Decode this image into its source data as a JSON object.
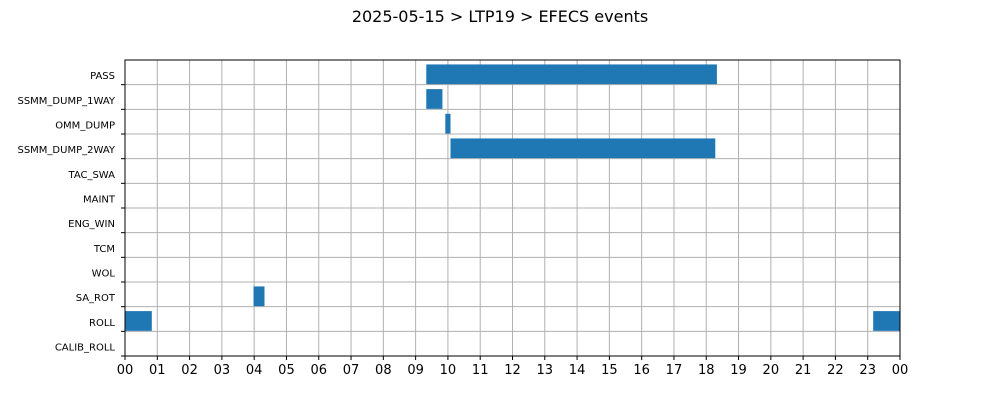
{
  "chart_data": {
    "type": "bar",
    "orientation": "horizontal-timeline",
    "title": "2025-05-15 > LTP19 > EFECS events",
    "xlabel": "",
    "ylabel": "",
    "xlim": [
      0,
      24
    ],
    "x_tick_labels": [
      "00",
      "01",
      "02",
      "03",
      "04",
      "05",
      "06",
      "07",
      "08",
      "09",
      "10",
      "11",
      "12",
      "13",
      "14",
      "15",
      "16",
      "17",
      "18",
      "19",
      "20",
      "21",
      "22",
      "23",
      "00"
    ],
    "categories": [
      "PASS",
      "SSMM_DUMP_1WAY",
      "OMM_DUMP",
      "SSMM_DUMP_2WAY",
      "TAC_SWA",
      "MAINT",
      "ENG_WIN",
      "TCM",
      "WOL",
      "SA_ROT",
      "ROLL",
      "CALIB_ROLL"
    ],
    "grid": true,
    "bar_color": "#1f77b4",
    "events": [
      {
        "category": "PASS",
        "start": 9.33,
        "end": 18.33
      },
      {
        "category": "SSMM_DUMP_1WAY",
        "start": 9.33,
        "end": 9.83
      },
      {
        "category": "OMM_DUMP",
        "start": 9.92,
        "end": 10.08
      },
      {
        "category": "SSMM_DUMP_2WAY",
        "start": 10.08,
        "end": 18.28
      },
      {
        "category": "SA_ROT",
        "start": 3.98,
        "end": 4.32
      },
      {
        "category": "ROLL",
        "start": 0.0,
        "end": 0.83
      },
      {
        "category": "ROLL",
        "start": 23.17,
        "end": 24.0
      }
    ]
  }
}
